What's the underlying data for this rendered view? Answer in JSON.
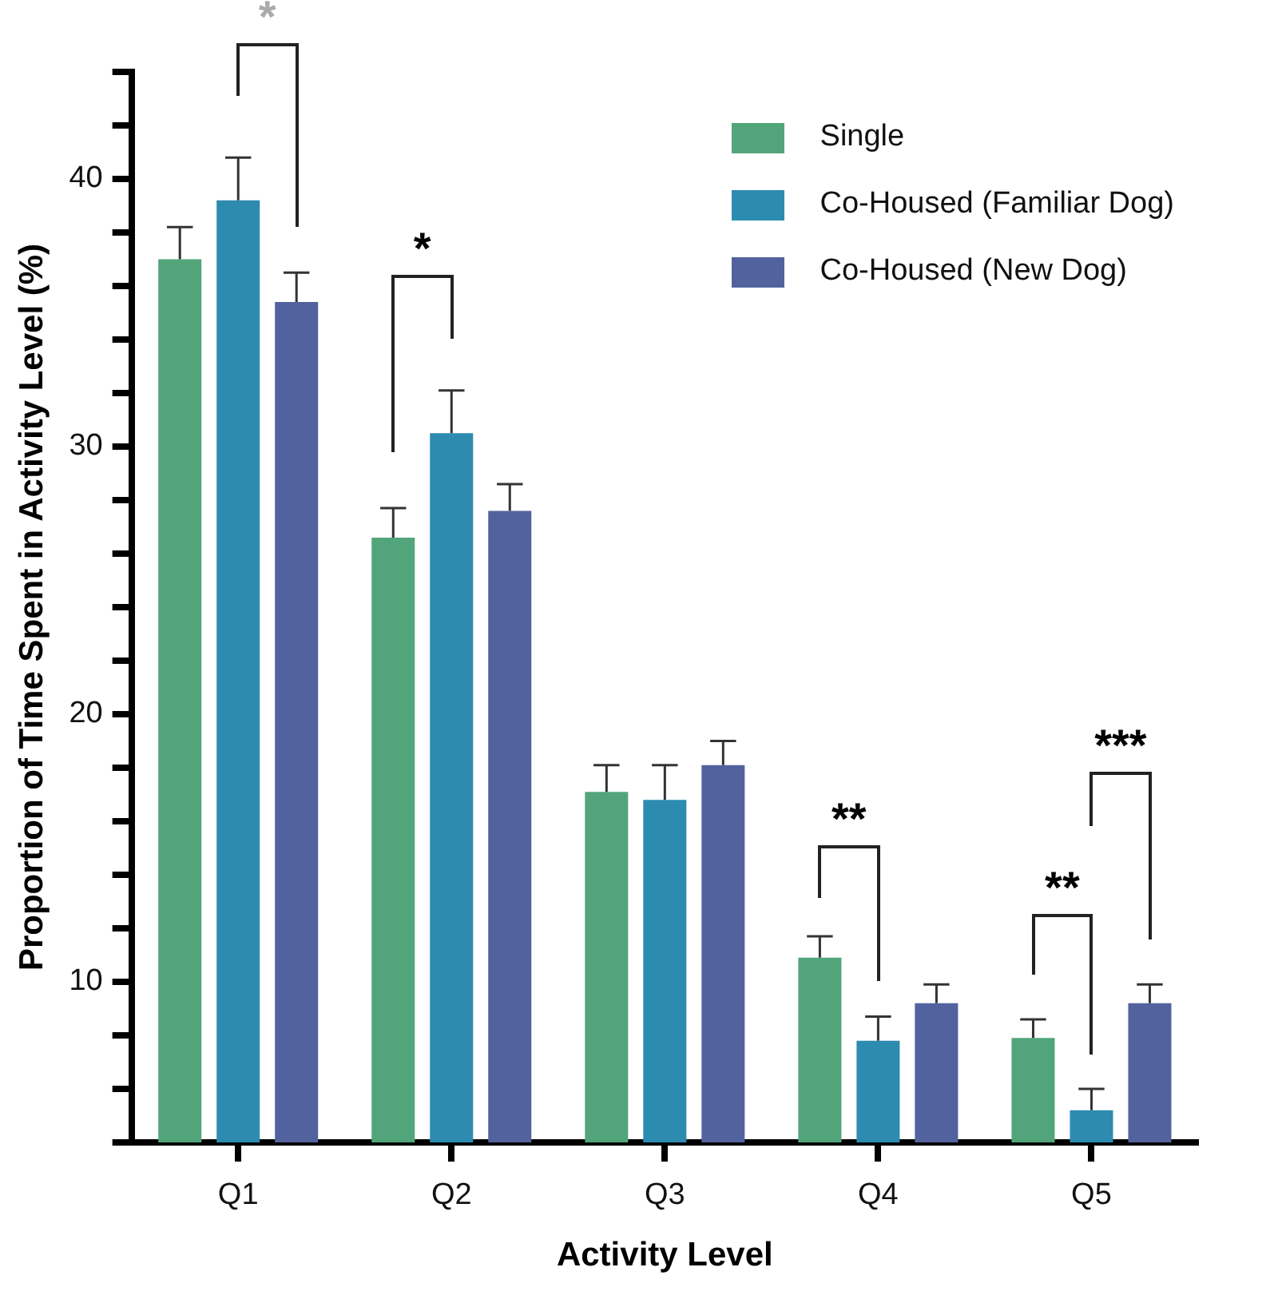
{
  "chart_data": {
    "type": "bar",
    "xlabel": "Activity Level",
    "ylabel": "Proportion of Time Spent in Activity Level (%)",
    "categories": [
      "Q1",
      "Q2",
      "Q3",
      "Q4",
      "Q5"
    ],
    "series": [
      {
        "name": "Single",
        "color": "#52a57a",
        "values": [
          37.0,
          26.6,
          17.1,
          10.9,
          7.9
        ],
        "errors": [
          [
            37.0,
            38.2
          ],
          [
            26.6,
            27.7
          ],
          [
            17.1,
            18.1
          ],
          [
            10.9,
            11.7
          ],
          [
            7.9,
            8.6
          ]
        ]
      },
      {
        "name": "Co-Housed (Familiar Dog)",
        "color": "#2d8bb0",
        "values": [
          39.2,
          30.5,
          16.8,
          7.8,
          5.2
        ],
        "errors": [
          [
            39.2,
            40.8
          ],
          [
            30.5,
            32.1
          ],
          [
            16.8,
            18.1
          ],
          [
            7.8,
            8.7
          ],
          [
            5.2,
            6.0
          ]
        ]
      },
      {
        "name": "Co-Housed (New Dog)",
        "color": "#52629e",
        "values": [
          35.4,
          27.6,
          18.1,
          9.2,
          9.2
        ],
        "errors": [
          [
            35.4,
            36.5
          ],
          [
            27.6,
            28.6
          ],
          [
            18.1,
            19.0
          ],
          [
            9.2,
            9.9
          ],
          [
            9.2,
            9.9
          ]
        ]
      }
    ],
    "ylim": [
      4,
      44
    ],
    "yticks": [
      {
        "value": 4,
        "label": null
      },
      {
        "value": 6,
        "label": null
      },
      {
        "value": 8,
        "label": null
      },
      10,
      {
        "value": 12,
        "label": null
      },
      {
        "value": 14,
        "label": null
      },
      {
        "value": 16,
        "label": null
      },
      {
        "value": 18,
        "label": null
      },
      20,
      {
        "value": 22,
        "label": null
      },
      {
        "value": 24,
        "label": null
      },
      {
        "value": 26,
        "label": null
      },
      {
        "value": 28,
        "label": null
      },
      30,
      {
        "value": 32,
        "label": null
      },
      {
        "value": 34,
        "label": null
      },
      {
        "value": 36,
        "label": null
      },
      {
        "value": 38,
        "label": null
      },
      40,
      {
        "value": 42,
        "label": null
      },
      {
        "value": 44,
        "label": null
      }
    ],
    "grid": false,
    "legend": "top right",
    "annotations": [
      "*",
      "*",
      "**",
      "**",
      "***"
    ]
  }
}
